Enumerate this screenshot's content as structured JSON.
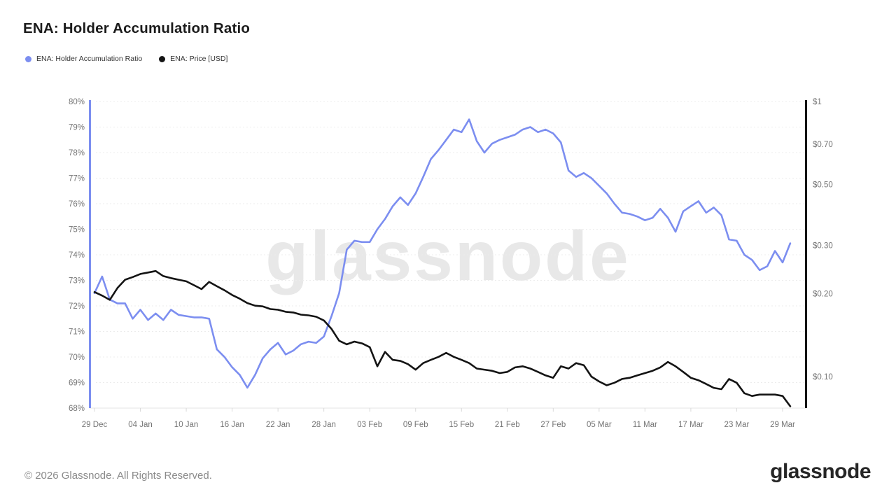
{
  "header": {
    "title": "ENA: Holder Accumulation Ratio"
  },
  "legend": [
    {
      "label": "ENA: Holder Accumulation Ratio",
      "color": "#7c8ef0"
    },
    {
      "label": "ENA: Price [USD]",
      "color": "#141414"
    }
  ],
  "watermark": "glassnode",
  "footer": {
    "copyright": "© 2026 Glassnode. All Rights Reserved.",
    "logo": "glassnode"
  },
  "colors": {
    "ratio_line": "#7c8ef0",
    "price_line": "#141414",
    "grid": "#ececec",
    "axis_label": "#757575",
    "watermark": "#e8e8e8",
    "baseline": "#e3e3e3",
    "tick": "#d9d9d9"
  },
  "chart_data": {
    "type": "line",
    "title": "ENA: Holder Accumulation Ratio",
    "grid": "horizontal-dotted",
    "legend_position": "top-left",
    "x": [
      "29 Dec",
      "30 Dec",
      "31 Dec",
      "01 Jan",
      "02 Jan",
      "03 Jan",
      "04 Jan",
      "05 Jan",
      "06 Jan",
      "07 Jan",
      "08 Jan",
      "09 Jan",
      "10 Jan",
      "11 Jan",
      "12 Jan",
      "13 Jan",
      "14 Jan",
      "15 Jan",
      "16 Jan",
      "17 Jan",
      "18 Jan",
      "19 Jan",
      "20 Jan",
      "21 Jan",
      "22 Jan",
      "23 Jan",
      "24 Jan",
      "25 Jan",
      "26 Jan",
      "27 Jan",
      "28 Jan",
      "29 Jan",
      "30 Jan",
      "31 Jan",
      "01 Feb",
      "02 Feb",
      "03 Feb",
      "04 Feb",
      "05 Feb",
      "06 Feb",
      "07 Feb",
      "08 Feb",
      "09 Feb",
      "10 Feb",
      "11 Feb",
      "12 Feb",
      "13 Feb",
      "14 Feb",
      "15 Feb",
      "16 Feb",
      "17 Feb",
      "18 Feb",
      "19 Feb",
      "20 Feb",
      "21 Feb",
      "22 Feb",
      "23 Feb",
      "24 Feb",
      "25 Feb",
      "26 Feb",
      "27 Feb",
      "28 Feb",
      "01 Mar",
      "02 Mar",
      "03 Mar",
      "04 Mar",
      "05 Mar",
      "06 Mar",
      "07 Mar",
      "08 Mar",
      "09 Mar",
      "10 Mar",
      "11 Mar",
      "12 Mar",
      "13 Mar",
      "14 Mar",
      "15 Mar",
      "16 Mar",
      "17 Mar",
      "18 Mar",
      "19 Mar",
      "20 Mar",
      "21 Mar",
      "22 Mar",
      "23 Mar",
      "24 Mar",
      "25 Mar",
      "26 Mar",
      "27 Mar",
      "28 Mar",
      "29 Mar",
      "30 Mar"
    ],
    "x_tick_labels": [
      "29 Dec",
      "04 Jan",
      "10 Jan",
      "16 Jan",
      "22 Jan",
      "28 Jan",
      "03 Feb",
      "09 Feb",
      "15 Feb",
      "21 Feb",
      "27 Feb",
      "05 Mar",
      "11 Mar",
      "17 Mar",
      "23 Mar",
      "29 Mar"
    ],
    "x_tick_interval_days": 6,
    "left_axis": {
      "unit": "%",
      "min": 68,
      "max": 80,
      "tick_step": 1,
      "tick_labels": [
        "80%",
        "79%",
        "78%",
        "77%",
        "76%",
        "75%",
        "74%",
        "73%",
        "72%",
        "71%",
        "70%",
        "69%",
        "68%"
      ]
    },
    "right_axis": {
      "unit": "USD",
      "scale": "log",
      "tick_labels": [
        "$1",
        "$0.70",
        "$0.50",
        "$0.30",
        "$0.20",
        "$0.10"
      ],
      "tick_values": [
        1,
        0.7,
        0.5,
        0.3,
        0.2,
        0.1
      ]
    },
    "series": [
      {
        "name": "ENA: Holder Accumulation Ratio",
        "axis": "left",
        "color": "#7c8ef0",
        "values": [
          72.5,
          73.15,
          72.25,
          72.1,
          72.1,
          71.5,
          71.85,
          71.45,
          71.7,
          71.45,
          71.85,
          71.65,
          71.6,
          71.55,
          71.55,
          71.5,
          70.3,
          70.0,
          69.6,
          69.3,
          68.8,
          69.3,
          69.95,
          70.3,
          70.55,
          70.1,
          70.25,
          70.5,
          70.6,
          70.55,
          70.8,
          71.6,
          72.5,
          74.2,
          74.55,
          74.5,
          74.5,
          75.0,
          75.4,
          75.9,
          76.25,
          75.95,
          76.4,
          77.05,
          77.75,
          78.1,
          78.5,
          78.9,
          78.8,
          79.3,
          78.45,
          78.0,
          78.35,
          78.5,
          78.6,
          78.7,
          78.9,
          79.0,
          78.8,
          78.9,
          78.75,
          78.4,
          77.3,
          77.05,
          77.2,
          77.0,
          76.7,
          76.4,
          76.0,
          75.65,
          75.6,
          75.5,
          75.35,
          75.45,
          75.8,
          75.45,
          74.9,
          75.7,
          75.9,
          76.1,
          75.65,
          75.85,
          75.55,
          74.6,
          74.55,
          74.0,
          73.8,
          73.4,
          73.55,
          74.15,
          73.7,
          74.45
        ]
      },
      {
        "name": "ENA: Price [USD]",
        "axis": "right",
        "color": "#141414",
        "values": [
          0.203,
          0.197,
          0.19,
          0.21,
          0.225,
          0.23,
          0.236,
          0.239,
          0.242,
          0.232,
          0.228,
          0.225,
          0.222,
          0.215,
          0.208,
          0.221,
          0.213,
          0.206,
          0.198,
          0.192,
          0.185,
          0.181,
          0.18,
          0.176,
          0.175,
          0.172,
          0.171,
          0.168,
          0.167,
          0.165,
          0.16,
          0.149,
          0.135,
          0.131,
          0.134,
          0.132,
          0.128,
          0.109,
          0.123,
          0.115,
          0.114,
          0.111,
          0.106,
          0.112,
          0.115,
          0.118,
          0.122,
          0.118,
          0.115,
          0.112,
          0.107,
          0.106,
          0.105,
          0.103,
          0.104,
          0.108,
          0.109,
          0.107,
          0.104,
          0.101,
          0.099,
          0.109,
          0.107,
          0.112,
          0.11,
          0.1,
          0.096,
          0.093,
          0.095,
          0.098,
          0.099,
          0.101,
          0.103,
          0.105,
          0.108,
          0.113,
          0.109,
          0.104,
          0.099,
          0.097,
          0.094,
          0.091,
          0.09,
          0.098,
          0.095,
          0.087,
          0.085,
          0.086,
          0.086,
          0.086,
          0.085,
          0.078
        ]
      }
    ]
  }
}
